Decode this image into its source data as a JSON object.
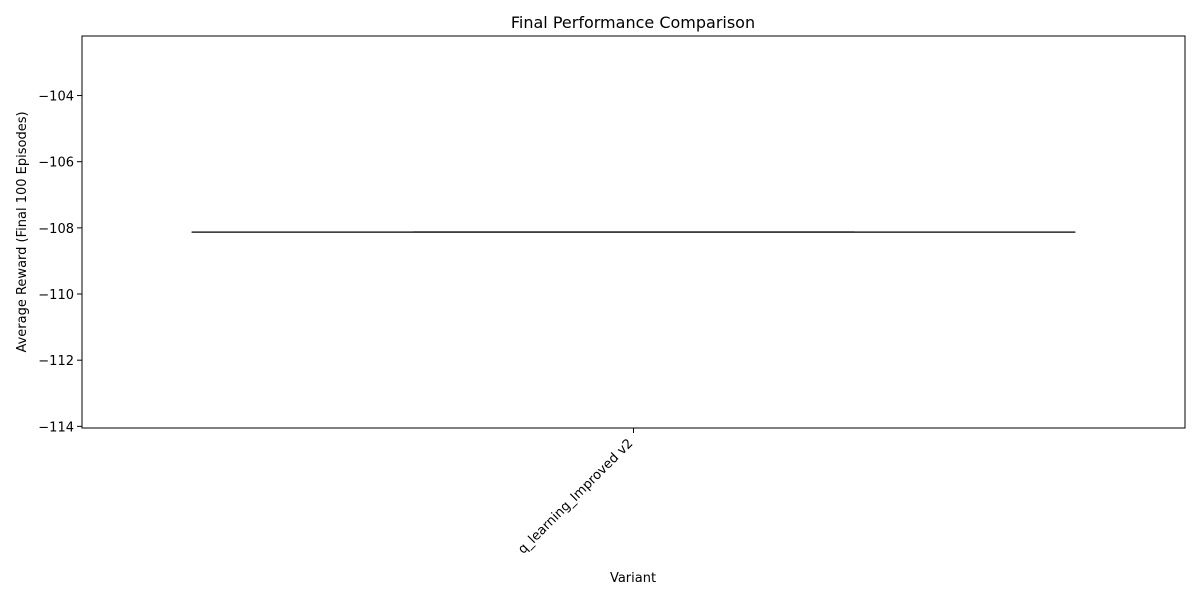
{
  "chart_data": {
    "type": "box",
    "title": "Final Performance Comparison",
    "xlabel": "Variant",
    "ylabel": "Average Reward (Final 100 Episodes)",
    "categories": [
      "q_learning_Improved v2"
    ],
    "series": [
      {
        "values": [
          -108.13
        ],
        "min": -108.13,
        "q1": -108.13,
        "median": -108.13,
        "q3": -108.13,
        "max": -108.13
      }
    ],
    "ylim": [
      -114.05,
      -102.2
    ],
    "yticks": [
      -114,
      -112,
      -110,
      -108,
      -106,
      -104
    ],
    "ytick_labels": [
      "−114",
      "−112",
      "−110",
      "−108",
      "−106",
      "−104"
    ],
    "xtick_rotation_deg": 45,
    "grid": false,
    "legend": "none",
    "colors": {
      "box_line": "#3f3f3f",
      "axes": "#000000",
      "background": "#ffffff"
    }
  }
}
